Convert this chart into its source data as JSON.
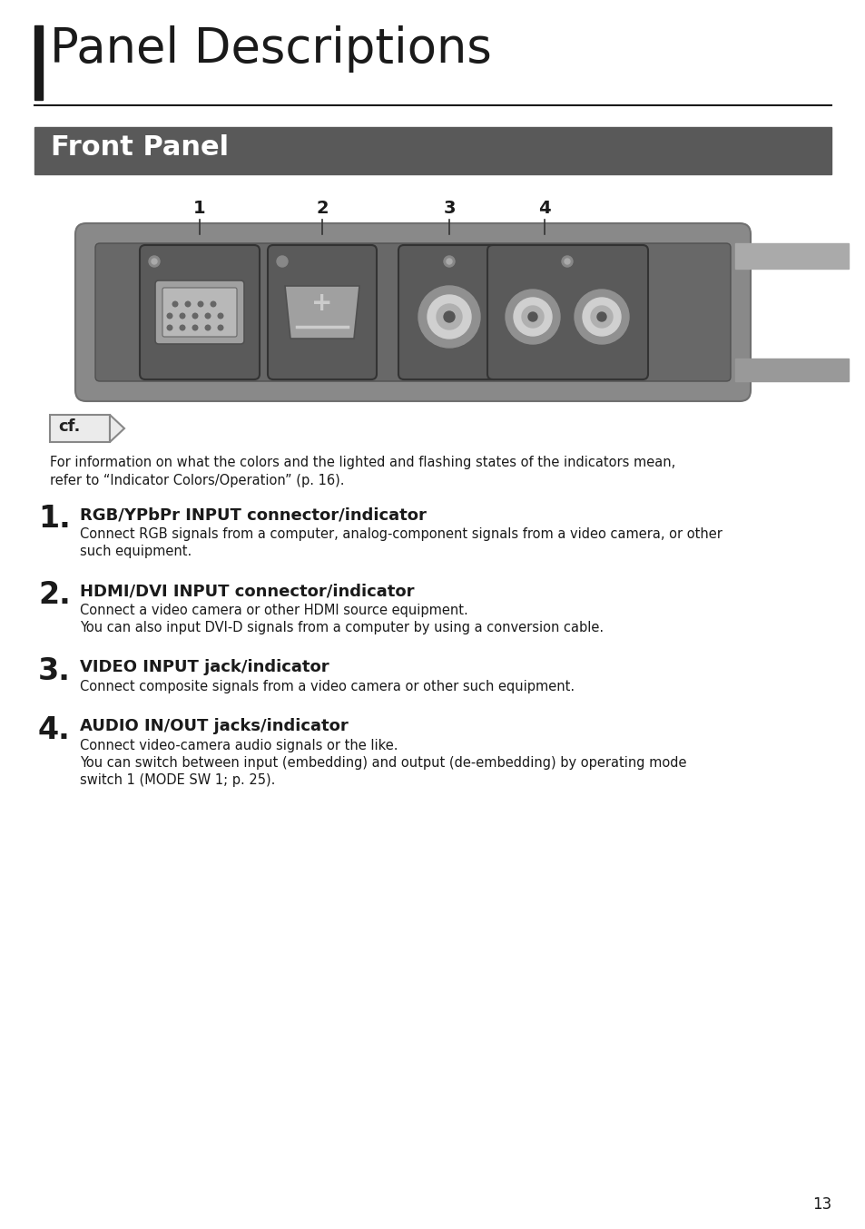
{
  "page_title": "Panel Descriptions",
  "section_title": "Front Panel",
  "section_bg_color": "#595959",
  "section_text_color": "#ffffff",
  "cf_text": "cf.",
  "cf_note_line1": "For information on what the colors and the lighted and flashing states of the indicators mean,",
  "cf_note_line2": "refer to “Indicator Colors/Operation” (p. 16).",
  "items": [
    {
      "number": "1.",
      "title": "RGB/YPbPr INPUT connector/indicator",
      "body_lines": [
        "Connect RGB signals from a computer, analog-component signals from a video camera, or other",
        "such equipment."
      ]
    },
    {
      "number": "2.",
      "title": "HDMI/DVI INPUT connector/indicator",
      "body_lines": [
        "Connect a video camera or other HDMI source equipment.",
        "You can also input DVI-D signals from a computer by using a conversion cable."
      ]
    },
    {
      "number": "3.",
      "title": "VIDEO INPUT jack/indicator",
      "body_lines": [
        "Connect composite signals from a video camera or other such equipment."
      ]
    },
    {
      "number": "4.",
      "title": "AUDIO IN/OUT jacks/indicator",
      "body_lines": [
        "Connect video-camera audio signals or the like.",
        "You can switch between input (embedding) and output (de-embedding) by operating mode",
        "switch 1 (MODE SW 1; p. 25)."
      ]
    }
  ],
  "page_number": "13",
  "bg_color": "#ffffff",
  "accent_bar_color": "#1a1a1a",
  "rule_color": "#1a1a1a",
  "text_color": "#1a1a1a",
  "panel_outer_color": "#898989",
  "panel_inner_color": "#686868",
  "slot_bg_color": "#5a5a5a",
  "slot_border_color": "#333333",
  "connector_light_color": "#b0b0b0",
  "connector_dark_color": "#444444",
  "cf_box_bg": "#ebebeb",
  "cf_box_border": "#888888"
}
